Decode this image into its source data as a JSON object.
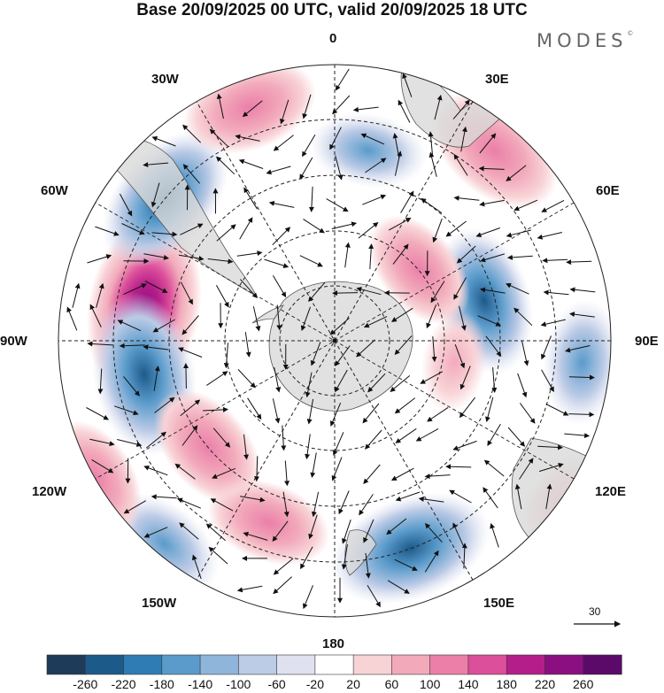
{
  "title": "Base 20/09/2025 00 UTC, valid 20/09/2025 18 UTC",
  "brand": "MODES",
  "brand_mark": "©",
  "longitude_labels": {
    "n0": "0",
    "e30": "30E",
    "e60": "60E",
    "e90": "90E",
    "e120": "120E",
    "e150": "150E",
    "s180": "180",
    "w150": "150W",
    "w120": "120W",
    "w90": "90W",
    "w60": "60W",
    "w30": "30W"
  },
  "reference_vector": {
    "label": "30"
  },
  "colorbar": {
    "ticks": [
      "-260",
      "-220",
      "-180",
      "-140",
      "-100",
      "-60",
      "-20",
      "20",
      "60",
      "100",
      "140",
      "180",
      "220",
      "260"
    ],
    "colors": [
      "#1f3b5a",
      "#1c5a8a",
      "#2f7cb5",
      "#5a9bcb",
      "#8fb5db",
      "#bccbe6",
      "#dfe1f0",
      "#ffffff",
      "#f8d3d6",
      "#f2aabb",
      "#eb7fa8",
      "#dc4f9a",
      "#b41e8a",
      "#8b0f80",
      "#5c0a6a"
    ]
  },
  "anomaly_centers": [
    {
      "lon": -80,
      "lat": -55,
      "value": 260
    },
    {
      "lon": -50,
      "lat": -50,
      "value": -200
    },
    {
      "lon": -100,
      "lat": -55,
      "value": -220
    },
    {
      "lon": 160,
      "lat": -50,
      "value": -220
    },
    {
      "lon": 75,
      "lat": -62,
      "value": -180
    },
    {
      "lon": 95,
      "lat": -45,
      "value": -120
    },
    {
      "lon": 10,
      "lat": -55,
      "value": -100
    },
    {
      "lon": -140,
      "lat": -42,
      "value": -120
    },
    {
      "lon": -20,
      "lat": -45,
      "value": 150
    },
    {
      "lon": 40,
      "lat": -45,
      "value": 170
    },
    {
      "lon": 50,
      "lat": -70,
      "value": 120
    },
    {
      "lon": -130,
      "lat": -60,
      "value": 140
    },
    {
      "lon": -160,
      "lat": -55,
      "value": 120
    },
    {
      "lon": -120,
      "lat": -40,
      "value": 120
    },
    {
      "lon": 125,
      "lat": -40,
      "value": 60
    },
    {
      "lon": 100,
      "lat": -68,
      "value": 60
    }
  ]
}
